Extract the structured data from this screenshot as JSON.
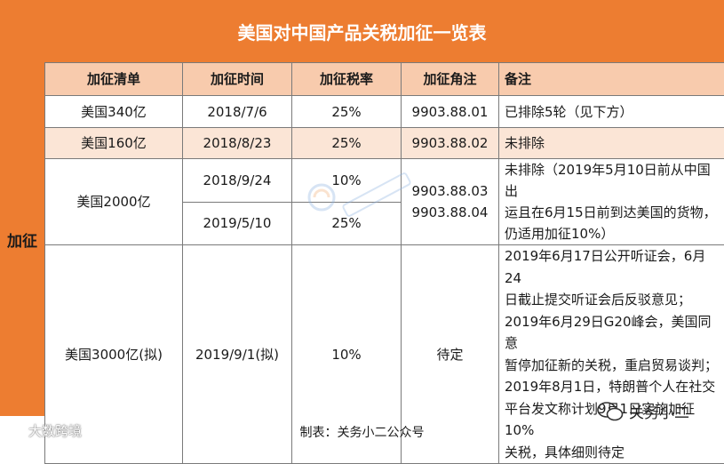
{
  "title": "美国对中国产品关税加征一览表",
  "side_label": "加征",
  "headers": [
    "加征清单",
    "加征时间",
    "加征税率",
    "加征角注",
    "备注"
  ],
  "rows": {
    "r1": {
      "list": "美国340亿",
      "date": "2018/7/6",
      "rate": "25%",
      "code": "9903.88.01",
      "remark": "已排除5轮（见下方）"
    },
    "r2": {
      "list": "美国160亿",
      "date": "2018/8/23",
      "rate": "25%",
      "code": "9903.88.02",
      "remark": "未排除"
    },
    "r3": {
      "list": "美国2000亿",
      "date_a": "2018/9/24",
      "rate_a": "10%",
      "date_b": "2019/5/10",
      "rate_b": "25%",
      "code_a": "9903.88.03",
      "code_b": "9903.88.04",
      "remark_lines": [
        "未排除（2019年5月10日前从中国出",
        "运且在6月15日前到达美国的货物，",
        "仍适用加征10%）"
      ]
    },
    "r4": {
      "list": "美国3000亿(拟)",
      "date": "2019/9/1(拟)",
      "rate": "10%",
      "code": "待定",
      "remark_lines": [
        "2019年6月17日公开听证会，6月24",
        "日截止提交听证会后反驳意见；",
        "2019年6月29日G20峰会，美国同意",
        "暂停加征新的关税，重启贸易谈判；",
        "2019年8月1日，特朗普个人在社交",
        "平台发文称计划9月1日实施加征10%",
        "关税，具体细则待定"
      ]
    }
  },
  "footer": "制表：关务小二公众号",
  "watermark_left": "大数跨境",
  "watermark_right": "关务小二",
  "colors": {
    "header_orange": "#ed7d31",
    "col_header": "#f8cbad",
    "row_shade": "#fbe5d6"
  }
}
